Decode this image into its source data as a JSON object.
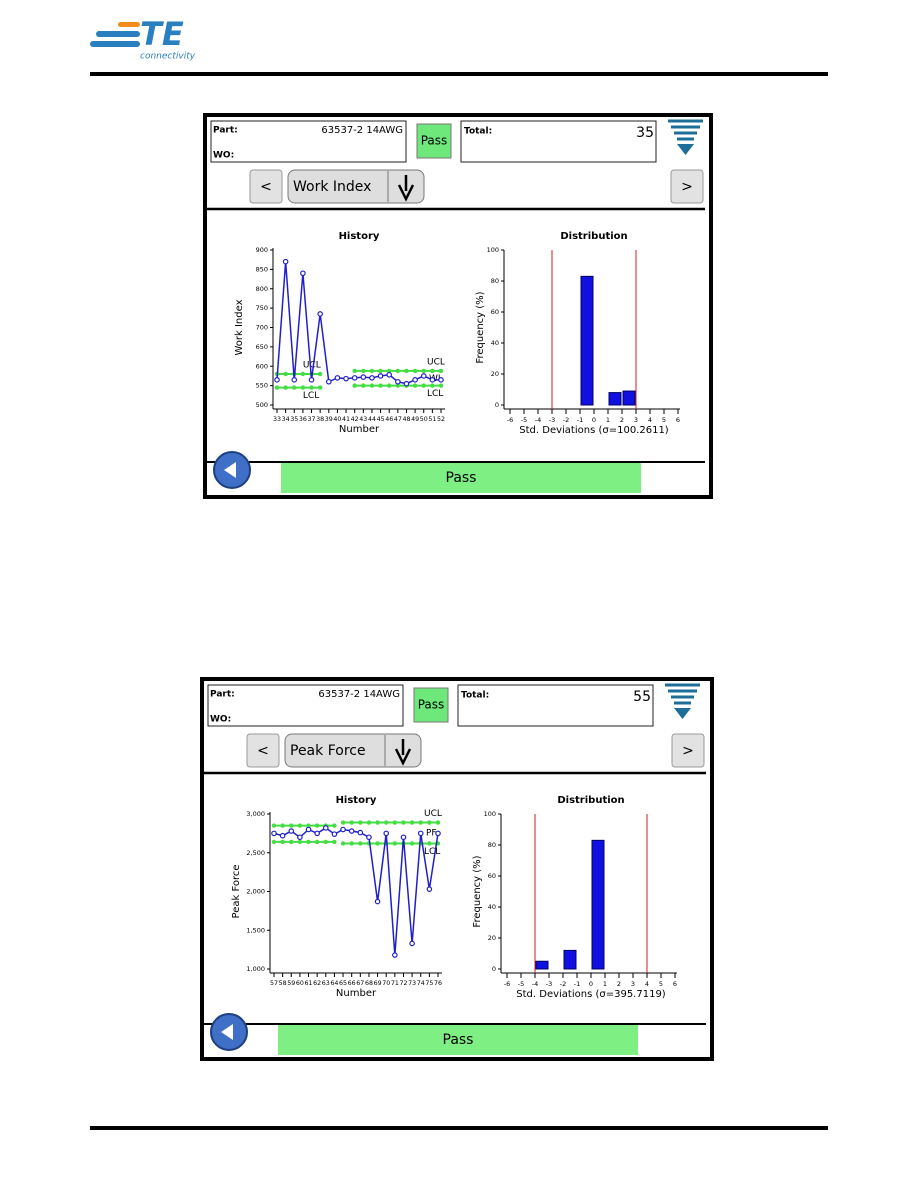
{
  "header": {
    "logo": "TE",
    "logo_sub": "connectivity"
  },
  "screens": [
    {
      "part_label": "Part:",
      "part": "63537-2 14AWG",
      "wo_label": "WO:",
      "status": "Pass",
      "total_label": "Total:",
      "total": 35,
      "prev": "<",
      "measure": "Work Index",
      "next": ">",
      "footer_status": "Pass",
      "history": {
        "type": "line",
        "title": "History",
        "x_label": "Number",
        "y_label": "Work Index",
        "color": "#2020c8",
        "limit_color": "#44dd44",
        "x": [
          33,
          34,
          35,
          36,
          37,
          38,
          39,
          40,
          41,
          42,
          43,
          44,
          45,
          46,
          47,
          48,
          49,
          50,
          51,
          52
        ],
        "values": [
          565,
          870,
          565,
          840,
          565,
          735,
          560,
          570,
          568,
          570,
          572,
          570,
          575,
          578,
          560,
          555,
          565,
          575,
          565,
          565
        ],
        "ylim": [
          500,
          900
        ],
        "yticks": [
          500,
          550,
          600,
          650,
          700,
          750,
          800,
          850,
          900
        ],
        "limits": [
          {
            "label": "UCL",
            "x": [
              33,
              34,
              35,
              36,
              37,
              38
            ],
            "values": [
              580,
              580,
              580,
              580,
              580,
              580
            ]
          },
          {
            "label": "LCL",
            "x": [
              33,
              34,
              35,
              36,
              37,
              38
            ],
            "values": [
              545,
              545,
              545,
              545,
              545,
              545
            ]
          },
          {
            "label": "UCL",
            "x": [
              42,
              43,
              44,
              45,
              46,
              47,
              48,
              49,
              50,
              51,
              52
            ],
            "values": [
              588,
              588,
              588,
              588,
              588,
              588,
              588,
              588,
              588,
              588,
              588
            ]
          },
          {
            "label": "LCL",
            "x": [
              42,
              43,
              44,
              45,
              46,
              47,
              48,
              49,
              50,
              51,
              52
            ],
            "values": [
              550,
              550,
              550,
              550,
              550,
              550,
              550,
              550,
              550,
              550,
              550
            ]
          }
        ],
        "center_label": "WI"
      },
      "distribution": {
        "type": "bar",
        "title": "Distribution",
        "x_label": "Std. Deviations (σ=100.2611)",
        "y_label": "Frequency (%)",
        "color": "#1010e0",
        "limit_color": "#cc2222",
        "xlim": [
          -6,
          6
        ],
        "xticks": [
          -6,
          -5,
          -4,
          -3,
          -2,
          -1,
          0,
          1,
          2,
          3,
          4,
          5,
          6
        ],
        "ylim": [
          0,
          100
        ],
        "yticks": [
          0,
          20,
          40,
          60,
          80,
          100
        ],
        "bar_edges": [
          [
            -1,
            0
          ],
          [
            1,
            2
          ],
          [
            2,
            3
          ]
        ],
        "values": [
          83,
          8,
          9
        ],
        "limit_lines": [
          -3,
          3
        ]
      }
    },
    {
      "part_label": "Part:",
      "part": "63537-2 14AWG",
      "wo_label": "WO:",
      "status": "Pass",
      "total_label": "Total:",
      "total": 55,
      "prev": "<",
      "measure": "Peak Force",
      "next": ">",
      "footer_status": "Pass",
      "history": {
        "type": "line",
        "title": "History",
        "x_label": "Number",
        "y_label": "Peak Force",
        "color": "#2020c8",
        "limit_color": "#44dd44",
        "x": [
          57,
          58,
          59,
          60,
          61,
          62,
          63,
          64,
          65,
          66,
          67,
          68,
          69,
          70,
          71,
          72,
          73,
          74,
          75,
          76
        ],
        "values": [
          2750,
          2720,
          2780,
          2700,
          2800,
          2750,
          2820,
          2740,
          2800,
          2780,
          2760,
          2700,
          1870,
          2750,
          1180,
          2700,
          1330,
          2750,
          2030,
          2750
        ],
        "ylim": [
          1000,
          3000
        ],
        "yticks": [
          {
            "value": 1000,
            "label": "1,000"
          },
          {
            "value": 1500,
            "label": "1,500"
          },
          {
            "value": 2000,
            "label": "2,000"
          },
          {
            "value": 2500,
            "label": "2,500"
          },
          {
            "value": 3000,
            "label": "3,000"
          }
        ],
        "limits": [
          {
            "x": [
              57,
              58,
              59,
              60,
              61,
              62,
              63,
              64
            ],
            "values": [
              2850,
              2850,
              2850,
              2850,
              2850,
              2850,
              2850,
              2850
            ]
          },
          {
            "x": [
              57,
              58,
              59,
              60,
              61,
              62,
              63,
              64
            ],
            "values": [
              2640,
              2640,
              2640,
              2640,
              2640,
              2640,
              2640,
              2640
            ]
          },
          {
            "label": "UCL",
            "x": [
              65,
              66,
              67,
              68,
              69,
              70,
              71,
              72,
              73,
              74,
              75,
              76
            ],
            "values": [
              2890,
              2890,
              2890,
              2890,
              2890,
              2890,
              2890,
              2890,
              2890,
              2890,
              2890,
              2890
            ]
          },
          {
            "label": "LCL",
            "x": [
              65,
              66,
              67,
              68,
              69,
              70,
              71,
              72,
              73,
              74,
              75,
              76
            ],
            "values": [
              2620,
              2620,
              2620,
              2620,
              2620,
              2620,
              2620,
              2620,
              2620,
              2620,
              2620,
              2620
            ]
          }
        ],
        "center_label": "PF"
      },
      "distribution": {
        "type": "bar",
        "title": "Distribution",
        "x_label": "Std. Deviations (σ=395.7119)",
        "y_label": "Frequency (%)",
        "color": "#1010e0",
        "limit_color": "#cc2222",
        "xlim": [
          -6,
          6
        ],
        "xticks": [
          -6,
          -5,
          -4,
          -3,
          -2,
          -1,
          0,
          1,
          2,
          3,
          4,
          5,
          6
        ],
        "ylim": [
          0,
          100
        ],
        "yticks": [
          0,
          20,
          40,
          60,
          80,
          100
        ],
        "bar_edges": [
          [
            -4,
            -3
          ],
          [
            -2,
            -1
          ],
          [
            0,
            1
          ]
        ],
        "values": [
          5,
          12,
          83
        ],
        "limit_lines": [
          -4,
          4
        ]
      }
    }
  ]
}
